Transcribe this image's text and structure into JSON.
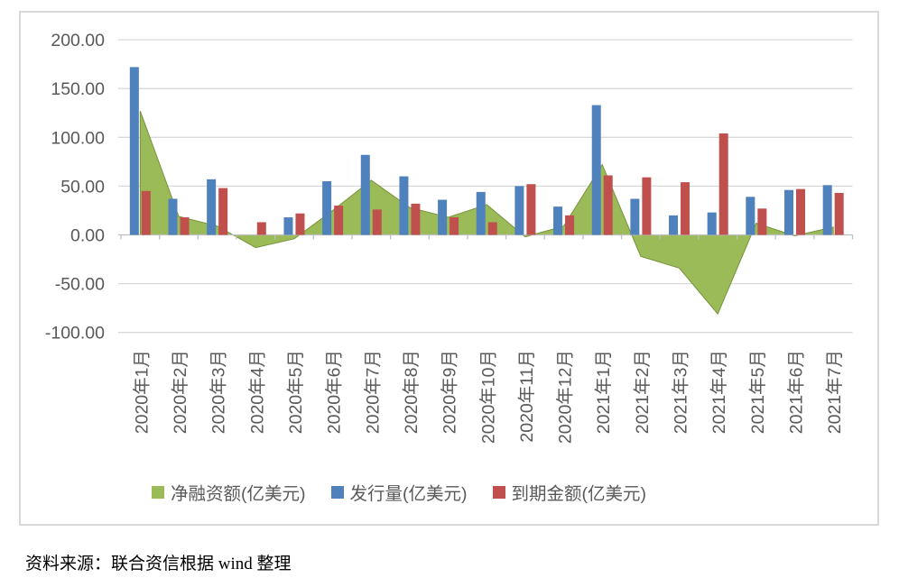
{
  "chart_data": {
    "type": "combo",
    "title": "",
    "categories": [
      "2020年1月",
      "2020年2月",
      "2020年3月",
      "2020年4月",
      "2020年5月",
      "2020年6月",
      "2020年7月",
      "2020年8月",
      "2020年9月",
      "2020年10月",
      "2020年11月",
      "2020年12月",
      "2021年1月",
      "2021年2月",
      "2021年3月",
      "2021年4月",
      "2021年5月",
      "2021年6月",
      "2021年7月"
    ],
    "series": [
      {
        "name": "净融资额(亿美元)",
        "type": "area",
        "color": "#9bbb59",
        "edge_color": "#77933c",
        "values": [
          127,
          19,
          9,
          -13,
          -4,
          25,
          56,
          28,
          18,
          31,
          -2,
          9,
          72,
          -22,
          -34,
          -81,
          12,
          -1,
          8
        ]
      },
      {
        "name": "发行量(亿美元)",
        "type": "bar",
        "color": "#4f81bd",
        "values": [
          172,
          37,
          57,
          0,
          18,
          55,
          82,
          60,
          36,
          44,
          50,
          29,
          133,
          37,
          20,
          23,
          39,
          46,
          51
        ]
      },
      {
        "name": "到期金额(亿美元)",
        "type": "bar",
        "color": "#c0504d",
        "values": [
          45,
          18,
          48,
          13,
          22,
          30,
          26,
          32,
          18,
          13,
          52,
          20,
          61,
          59,
          54,
          104,
          27,
          47,
          43
        ]
      }
    ],
    "y_axis": {
      "min": -100,
      "max": 200,
      "step": 50,
      "tick_labels": [
        "200.00",
        "150.00",
        "100.00",
        "50.00",
        "0.00",
        "-50.00",
        "-100.00"
      ]
    },
    "grid": true,
    "legend_position": "bottom",
    "axis_text_color": "#595959",
    "gridline_color": "#d9d9d9",
    "axis_line_color": "#bfbfbf"
  },
  "source_note": "资料来源：联合资信根据 wind 整理"
}
